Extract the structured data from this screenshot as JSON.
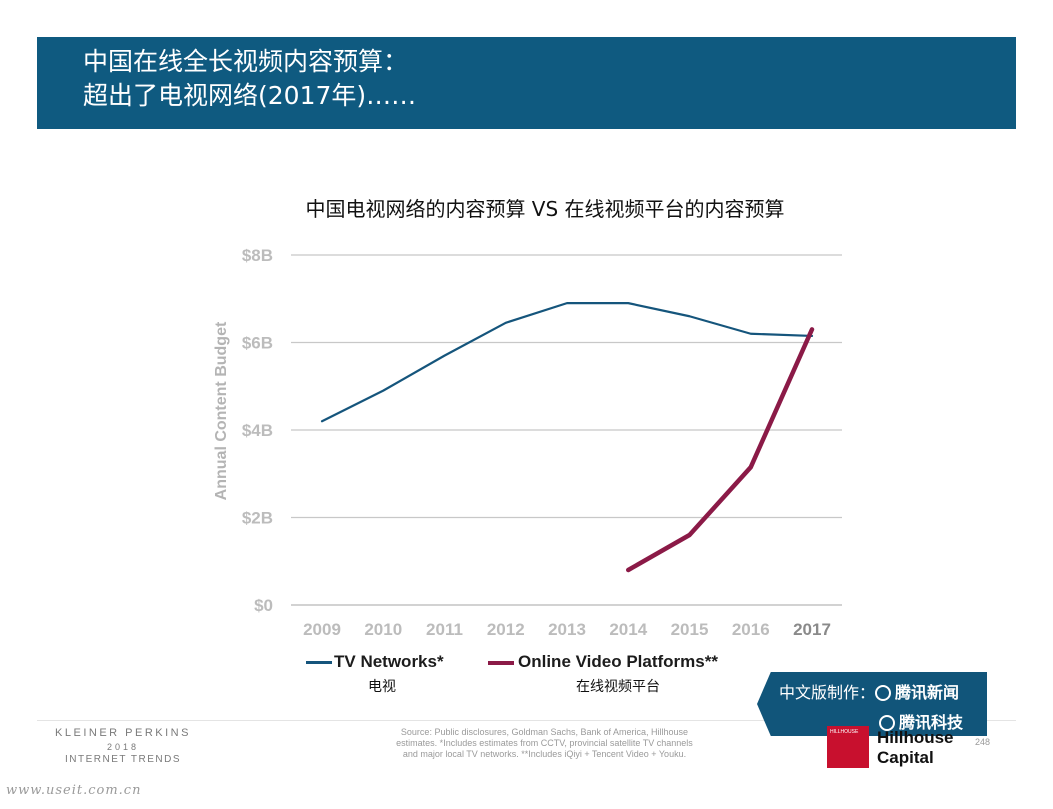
{
  "header": {
    "line1": "中国在线全长视频内容预算：",
    "line2": "超出了电视网络(2017年)……"
  },
  "chart_data": {
    "type": "line",
    "title": "中国电视网络的内容预算 VS 在线视频平台的内容预算",
    "ylabel": "Annual Content Budget",
    "xlabel": "",
    "x": [
      "2009",
      "2010",
      "2011",
      "2012",
      "2013",
      "2014",
      "2015",
      "2016",
      "2017"
    ],
    "y_ticks": [
      {
        "value": 0,
        "label": "$0"
      },
      {
        "value": 2,
        "label": "$2B"
      },
      {
        "value": 4,
        "label": "$4B"
      },
      {
        "value": 6,
        "label": "$6B"
      },
      {
        "value": 8,
        "label": "$8B"
      }
    ],
    "ylim": [
      0,
      8
    ],
    "grid": true,
    "legend_position": "bottom",
    "series": [
      {
        "name": "TV Networks*",
        "subtitle": "电视",
        "color": "#15557c",
        "values": [
          4.2,
          4.9,
          5.7,
          6.45,
          6.9,
          6.9,
          6.6,
          6.2,
          6.15
        ]
      },
      {
        "name": "Online Video Platforms**",
        "subtitle": "在线视频平台",
        "color": "#8b1a47",
        "values": [
          null,
          null,
          null,
          null,
          null,
          0.8,
          1.6,
          3.15,
          6.3
        ]
      }
    ]
  },
  "footer": {
    "kp_line1": "KLEINER PERKINS",
    "kp_line2": "2018",
    "kp_line3": "INTERNET TRENDS",
    "source_l1": "Source: Public disclosures, Goldman Sachs, Bank of America, Hillhouse",
    "source_l2": "estimates. *Includes estimates from CCTV, provincial satellite TV channels",
    "source_l3": "and major local TV networks. **Includes iQiyi + Tencent Video + Youku.",
    "badge_prefix": "中文版制作：",
    "badge_brand1": "腾讯新闻",
    "badge_brand2": "腾讯科技",
    "hillhouse_box": "HILLHOUSE",
    "hillhouse_1": "Hillhouse",
    "hillhouse_2": "Capital",
    "page_number": "248",
    "site": "www.useit.com.cn"
  }
}
